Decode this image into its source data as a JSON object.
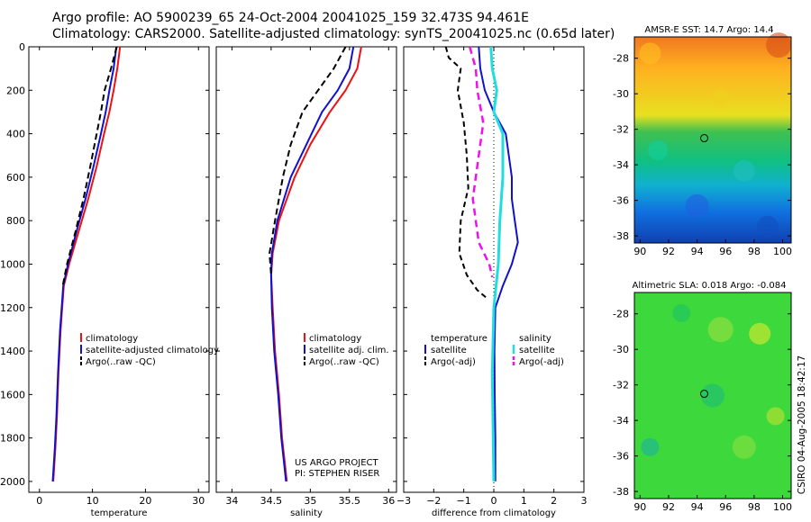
{
  "header": {
    "line1": "Argo profile: AO 5900239_65 24-Oct-2004 20041025_159 32.473S 94.461E",
    "line2": "Climatology: CARS2000. Satellite-adjusted climatology: synTS_20041025.nc (0.65d later)"
  },
  "colors": {
    "climatology": "#ee1111",
    "satellite": "#1111cc",
    "argo": "#000000",
    "salinity": "#22dddd",
    "argo_adj_sal": "#ee11ee"
  },
  "chart_data": [
    {
      "type": "line",
      "xlabel": "temperature",
      "xlim": [
        -2,
        32
      ],
      "ylim": [
        2050,
        0
      ],
      "xticks": [
        "0",
        "10",
        "20",
        "30"
      ],
      "yticks": [
        "0",
        "200",
        "400",
        "600",
        "800",
        "1000",
        "1200",
        "1400",
        "1600",
        "1800",
        "2000"
      ],
      "series": [
        {
          "name": "climatology",
          "dash": "none",
          "x": [
            15.2,
            14.7,
            14.0,
            13.2,
            12.2,
            10.8,
            9.2,
            7.4,
            5.6,
            4.6,
            4.0,
            3.6,
            3.3,
            3.0,
            2.6
          ],
          "y": [
            0,
            100,
            200,
            300,
            400,
            550,
            700,
            850,
            1000,
            1100,
            1300,
            1500,
            1700,
            1850,
            2000
          ]
        },
        {
          "name": "satellite-adjusted climatology",
          "dash": "none",
          "x": [
            14.5,
            14.0,
            13.2,
            12.5,
            11.6,
            10.2,
            8.7,
            7.0,
            5.4,
            4.5,
            3.9,
            3.5,
            3.2,
            2.9,
            2.5
          ],
          "y": [
            0,
            100,
            200,
            300,
            400,
            550,
            700,
            850,
            1000,
            1100,
            1300,
            1500,
            1700,
            1850,
            2000
          ]
        },
        {
          "name": "Argo(..raw -QC)",
          "dash": "7,4",
          "x": [
            14.6,
            13.5,
            12.3,
            11.6,
            10.8,
            9.6,
            8.3,
            6.8,
            5.2,
            4.4
          ],
          "y": [
            0,
            100,
            200,
            300,
            400,
            550,
            700,
            850,
            1000,
            1100
          ]
        }
      ],
      "legend": {
        "position": "bottom-right",
        "entries": [
          "climatology",
          "satellite-adjusted climatology",
          "Argo(..raw -QC)"
        ]
      }
    },
    {
      "type": "line",
      "xlabel": "salinity",
      "xlim": [
        33.8,
        36.1
      ],
      "ylim": [
        2050,
        0
      ],
      "xticks": [
        "34",
        "34.5",
        "35",
        "35.5",
        "36"
      ],
      "series": [
        {
          "name": "climatology",
          "dash": "none",
          "x": [
            35.65,
            35.6,
            35.45,
            35.25,
            35.0,
            34.8,
            34.6,
            34.52,
            34.5,
            34.52,
            34.55,
            34.6,
            34.64,
            34.67,
            34.7
          ],
          "y": [
            0,
            100,
            200,
            300,
            450,
            600,
            800,
            950,
            1050,
            1200,
            1400,
            1600,
            1800,
            1900,
            2000
          ]
        },
        {
          "name": "satellite adj. clim.",
          "dash": "none",
          "x": [
            35.55,
            35.5,
            35.35,
            35.15,
            34.95,
            34.75,
            34.58,
            34.51,
            34.5,
            34.51,
            34.54,
            34.59,
            34.63,
            34.66,
            34.69
          ],
          "y": [
            0,
            100,
            200,
            300,
            450,
            600,
            800,
            950,
            1050,
            1200,
            1400,
            1600,
            1800,
            1900,
            2000
          ]
        },
        {
          "name": "Argo(..raw -QC)",
          "dash": "7,4",
          "x": [
            35.45,
            35.3,
            35.1,
            34.9,
            34.75,
            34.65,
            34.55,
            34.48,
            34.5
          ],
          "y": [
            0,
            100,
            200,
            300,
            450,
            600,
            800,
            950,
            1050
          ]
        }
      ],
      "legend": {
        "position": "bottom-right",
        "entries": [
          "climatology",
          "satellite adj. clim.",
          "Argo(..raw -QC)"
        ]
      },
      "annotation": {
        "line1": "US ARGO PROJECT",
        "line2": "PI: STEPHEN RISER"
      }
    },
    {
      "type": "line",
      "xlabel": "difference from climatology",
      "xlim": [
        -3,
        3
      ],
      "ylim": [
        2050,
        0
      ],
      "xticks": [
        "−3",
        "−2",
        "−1",
        "0",
        "1",
        "2",
        "3"
      ],
      "series": [
        {
          "name": "temperature satellite",
          "dash": "none",
          "x": [
            -0.5,
            -0.45,
            -0.3,
            0.0,
            0.4,
            0.6,
            0.6,
            0.7,
            0.8,
            0.6,
            0.3,
            0.05,
            0.02,
            0.03,
            0.05,
            0.05
          ],
          "y": [
            0,
            100,
            200,
            300,
            400,
            600,
            700,
            800,
            900,
            1000,
            1100,
            1200,
            1400,
            1600,
            1800,
            2000
          ]
        },
        {
          "name": "temperature Argo(-adj)",
          "dash": "6,4",
          "x": [
            -1.6,
            -1.5,
            -1.1,
            -1.2,
            -1.0,
            -0.9,
            -0.85,
            -1.1,
            -1.15,
            -0.9,
            -0.55,
            -0.2
          ],
          "y": [
            0,
            50,
            100,
            200,
            350,
            500,
            650,
            800,
            950,
            1050,
            1120,
            1160
          ]
        },
        {
          "name": "salinity satellite",
          "dash": "none",
          "x": [
            -0.1,
            -0.05,
            0.1,
            0.0,
            0.3,
            0.3,
            0.2,
            0.15,
            0.0,
            -0.05,
            -0.02,
            0.0
          ],
          "y": [
            0,
            100,
            200,
            300,
            400,
            600,
            800,
            1000,
            1200,
            1500,
            1800,
            2000
          ]
        },
        {
          "name": "salinity Argo(-adj)",
          "dash": "8,5",
          "x": [
            -0.8,
            -0.6,
            -0.55,
            -0.35,
            -0.5,
            -0.7,
            -0.5,
            -0.15,
            -0.05
          ],
          "y": [
            0,
            100,
            200,
            350,
            500,
            700,
            900,
            1000,
            1060
          ]
        }
      ],
      "legend": {
        "position": "bottom",
        "temp_header": "temperature",
        "sal_header": "salinity",
        "temp_entries": [
          "satellite",
          "Argo(-adj)"
        ],
        "sal_entries": [
          "satellite",
          "Argo(-adj)"
        ]
      }
    },
    {
      "type": "heatmap",
      "title": "AMSR-E SST: 14.7 Argo: 14.4",
      "xlim": [
        89.6,
        100.6
      ],
      "ylim": [
        -38.4,
        -26.8
      ],
      "xticks": [
        "90",
        "92",
        "94",
        "96",
        "98",
        "100"
      ],
      "yticks": [
        "-28",
        "-30",
        "-32",
        "-34",
        "-36",
        "-38"
      ],
      "marker": {
        "lon": 94.5,
        "lat": -32.5
      }
    },
    {
      "type": "heatmap",
      "title": "Altimetric SLA: 0.018 Argo: -0.084",
      "xlim": [
        89.6,
        100.6
      ],
      "ylim": [
        -38.4,
        -26.8
      ],
      "xticks": [
        "90",
        "92",
        "94",
        "96",
        "98",
        "100"
      ],
      "yticks": [
        "-28",
        "-30",
        "-32",
        "-34",
        "-36",
        "-38"
      ],
      "marker": {
        "lon": 94.5,
        "lat": -32.5
      }
    }
  ],
  "footer": {
    "stamp": "CSIRO 04-Aug-2005 18:42:17"
  }
}
